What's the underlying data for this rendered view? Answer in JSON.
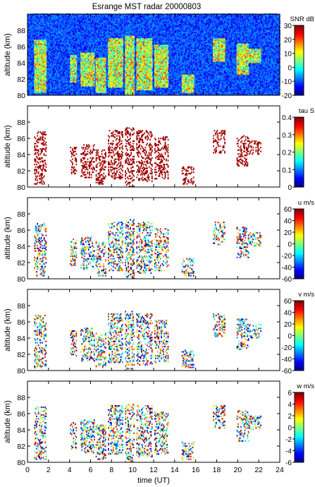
{
  "title": "Esrange MST radar 20000803",
  "chart_data": [
    {
      "type": "heatmap",
      "ylabel": "altitude (km)",
      "ylim": [
        80,
        90
      ],
      "yticks": [
        80,
        82,
        84,
        86,
        88
      ],
      "xlim": [
        0,
        24
      ],
      "colorbar": {
        "label": "SNR dB",
        "range": [
          -20,
          30
        ],
        "ticks": [
          -20,
          -10,
          0,
          10,
          20,
          30
        ]
      },
      "coverage": "full"
    },
    {
      "type": "heatmap",
      "ylabel": "altitude (km)",
      "ylim": [
        80,
        90
      ],
      "yticks": [
        80,
        82,
        84,
        86,
        88
      ],
      "xlim": [
        0,
        24
      ],
      "colorbar": {
        "label": "tau S",
        "range": [
          0,
          0.4
        ],
        "ticks": [
          0,
          0.1,
          0.2,
          0.3,
          0.4
        ]
      },
      "coverage": "sparse",
      "tone": "maxed"
    },
    {
      "type": "heatmap",
      "ylabel": "altitude (km)",
      "ylim": [
        80,
        90
      ],
      "yticks": [
        80,
        82,
        84,
        86,
        88
      ],
      "xlim": [
        0,
        24
      ],
      "colorbar": {
        "label": "u m/s",
        "range": [
          -60,
          60
        ],
        "ticks": [
          -60,
          -40,
          -20,
          0,
          20,
          40,
          60
        ]
      },
      "coverage": "sparse"
    },
    {
      "type": "heatmap",
      "ylabel": "altitude (km)",
      "ylim": [
        80,
        90
      ],
      "yticks": [
        80,
        82,
        84,
        86,
        88
      ],
      "xlim": [
        0,
        24
      ],
      "colorbar": {
        "label": "v m/s",
        "range": [
          -60,
          60
        ],
        "ticks": [
          -60,
          -40,
          -20,
          0,
          20,
          40,
          60
        ]
      },
      "coverage": "sparse"
    },
    {
      "type": "heatmap",
      "ylabel": "altitude (km)",
      "xlabel": "time (UT)",
      "ylim": [
        80,
        90
      ],
      "yticks": [
        80,
        82,
        84,
        86,
        88
      ],
      "xlim": [
        0,
        24
      ],
      "xticks": [
        0,
        2,
        4,
        6,
        8,
        10,
        12,
        14,
        16,
        18,
        20,
        22,
        24
      ],
      "colorbar": {
        "label": "w m/s",
        "range": [
          -6,
          6
        ],
        "ticks": [
          -6,
          -4,
          -2,
          0,
          2,
          4,
          6
        ]
      },
      "coverage": "sparse"
    }
  ]
}
